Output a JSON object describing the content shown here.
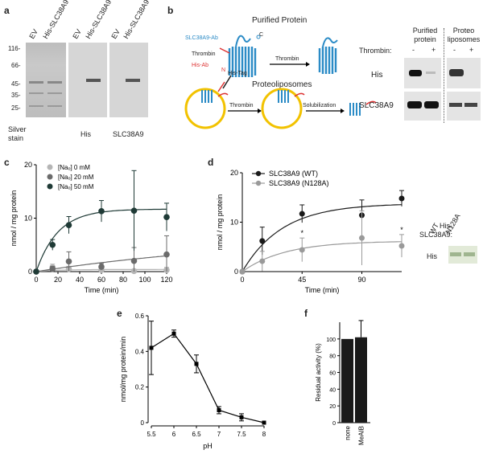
{
  "panel_a": {
    "label": "a",
    "lanes": [
      "EV",
      "His-SLC38A9",
      "EV",
      "His-SLC38A9",
      "EV",
      "His-SLC38A9"
    ],
    "markers": [
      "116-",
      "66-",
      "45-",
      "35-",
      "25-"
    ],
    "captions": [
      "Silver stain",
      "His",
      "SLC38A9"
    ]
  },
  "panel_b": {
    "label": "b",
    "title_top": "Purified Protein",
    "title_mid": "Proteoliposomes",
    "ab_label": "SLC38A9-Ab",
    "thrombin_label": "Thrombin",
    "hisab_label": "His-Ab",
    "histag_label": "His-Tag",
    "n_label": "N",
    "c_label": "C",
    "arrow1": "Thrombin",
    "arrow2": "Thrombin",
    "arrow3": "Solubilization",
    "col1": "Purified protein",
    "col2": "Proteo liposomes",
    "thrombin_row": "Thrombin:",
    "signs": [
      "-",
      "+",
      "-",
      "+"
    ],
    "row1": "His",
    "row2": "SLC38A9"
  },
  "panel_c": {
    "label": "c",
    "ylabel": "nmol / mg protein",
    "xlabel": "Time (min)",
    "yticks": [
      "0",
      "10",
      "20"
    ],
    "xticks": [
      "0",
      "20",
      "40",
      "60",
      "80",
      "100",
      "120"
    ],
    "legend": [
      "[Naₒ] 0 mM",
      "[Naₒ] 20 mM",
      "[Naₒ] 50 mM"
    ],
    "colors": [
      "#b5b5b5",
      "#6b6b6b",
      "#1f3a36"
    ]
  },
  "panel_d": {
    "label": "d",
    "ylabel": "nmol / mg protein",
    "xlabel": "Time (min)",
    "yticks": [
      "0",
      "10",
      "20"
    ],
    "xticks": [
      "0",
      "45",
      "90"
    ],
    "legend": [
      "SLC38A9 (WT)",
      "SLC38A9 (N128A)"
    ],
    "star": "*",
    "side_title": "His- SLC38A9:",
    "side_cols": [
      "WT",
      "N128A"
    ],
    "side_row": "His"
  },
  "panel_e": {
    "label": "e",
    "ylabel": "nmol/mg protein/min",
    "xlabel": "pH",
    "yticks": [
      "0",
      "0.2",
      "0.4",
      "0.6"
    ],
    "xticks": [
      "5.5",
      "6",
      "6.5",
      "7",
      "7.5",
      "8"
    ]
  },
  "panel_f": {
    "label": "f",
    "ylabel": "Residual activity (%)",
    "yticks": [
      "0",
      "20",
      "40",
      "60",
      "80",
      "100"
    ],
    "categories": [
      "none",
      "MeAIB"
    ]
  },
  "chart_data": [
    {
      "type": "scatter",
      "title": "c",
      "xlabel": "Time (min)",
      "ylabel": "nmol / mg protein",
      "xlim": [
        0,
        120
      ],
      "ylim": [
        0,
        20
      ],
      "series": [
        {
          "name": "[Naₒ] 0 mM",
          "x": [
            0,
            15,
            30,
            60,
            90,
            120
          ],
          "y": [
            0,
            0.8,
            0.5,
            0.3,
            0.1,
            0.3
          ],
          "err": [
            0,
            0.6,
            0.5,
            0.4,
            0.3,
            0.5
          ]
        },
        {
          "name": "[Naₒ] 20 mM",
          "x": [
            0,
            15,
            30,
            60,
            90,
            120
          ],
          "y": [
            0,
            0.5,
            1.9,
            0.9,
            2.0,
            3.2
          ],
          "err": [
            0,
            0.5,
            1.8,
            0.6,
            2.5,
            3.5
          ]
        },
        {
          "name": "[Naₒ] 50 mM",
          "x": [
            0,
            15,
            30,
            60,
            90,
            120
          ],
          "y": [
            0,
            5.0,
            8.7,
            11.3,
            11.4,
            10.2
          ],
          "err": [
            0,
            1.0,
            1.6,
            2.0,
            7.5,
            2.6
          ]
        }
      ]
    },
    {
      "type": "scatter",
      "title": "d",
      "xlabel": "Time (min)",
      "ylabel": "nmol / mg protein",
      "xlim": [
        0,
        120
      ],
      "ylim": [
        0,
        20
      ],
      "series": [
        {
          "name": "SLC38A9 (WT)",
          "x": [
            0,
            15,
            45,
            90,
            120
          ],
          "y": [
            0,
            6.2,
            11.7,
            11.4,
            14.8
          ],
          "err": [
            0,
            2.8,
            1.8,
            3.1,
            1.6
          ]
        },
        {
          "name": "SLC38A9 (N128A)",
          "x": [
            0,
            15,
            45,
            90,
            120
          ],
          "y": [
            0,
            2.1,
            4.4,
            6.8,
            5.2
          ],
          "err": [
            0,
            2.0,
            2.4,
            5.5,
            2.3
          ]
        }
      ]
    },
    {
      "type": "line",
      "title": "e",
      "xlabel": "pH",
      "ylabel": "nmol/mg protein/min",
      "xlim": [
        5.5,
        8
      ],
      "ylim": [
        0,
        0.6
      ],
      "x": [
        5.5,
        6,
        6.5,
        7,
        7.5,
        8
      ],
      "y": [
        0.42,
        0.5,
        0.33,
        0.07,
        0.03,
        0.0
      ],
      "err": [
        0.15,
        0.02,
        0.05,
        0.02,
        0.02,
        0.0
      ]
    },
    {
      "type": "bar",
      "title": "f",
      "ylabel": "Residual activity (%)",
      "categories": [
        "none",
        "MeAIB"
      ],
      "values": [
        100,
        102
      ],
      "err": [
        0,
        20
      ],
      "ylim": [
        0,
        120
      ]
    }
  ]
}
